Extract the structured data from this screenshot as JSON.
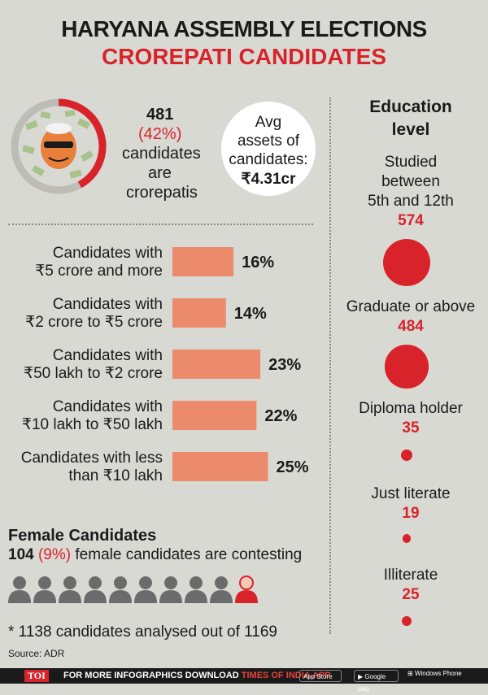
{
  "header": {
    "title_line1": "HARYANA ASSEMBLY ELECTIONS",
    "title_line2": "CROREPATI CANDIDATES"
  },
  "crorepati": {
    "count": "481",
    "percent": "(42%)",
    "line1": "candidates",
    "line2": "are",
    "line3": "crorepatis",
    "share": 0.42
  },
  "avg_assets": {
    "line1": "Avg",
    "line2": "assets of",
    "line3": "candidates:",
    "value": "₹4.31cr"
  },
  "chart_data": {
    "type": "bar",
    "orientation": "horizontal",
    "categories": [
      [
        "Candidates with",
        "₹5 crore and more"
      ],
      [
        "Candidates with",
        "₹2 crore to ₹5 crore"
      ],
      [
        "Candidates with",
        "₹50 lakh to ₹2 crore"
      ],
      [
        "Candidates with",
        "₹10 lakh to ₹50 lakh"
      ],
      [
        "Candidates with less",
        "than ₹10 lakh"
      ]
    ],
    "values": [
      16,
      14,
      23,
      22,
      25
    ],
    "value_labels": [
      "16%",
      "14%",
      "23%",
      "22%",
      "25%"
    ],
    "bar_color": "#ec8a6c"
  },
  "education": {
    "title_line1": "Education",
    "title_line2": "level",
    "items": [
      {
        "label_lines": [
          "Studied",
          "between",
          "5th and 12th"
        ],
        "value": "574",
        "count": 574
      },
      {
        "label_lines": [
          "Graduate or above"
        ],
        "value": "484",
        "count": 484
      },
      {
        "label_lines": [
          "Diploma holder"
        ],
        "value": "35",
        "count": 35
      },
      {
        "label_lines": [
          "Just literate"
        ],
        "value": "19",
        "count": 19
      },
      {
        "label_lines": [
          "Illiterate"
        ],
        "value": "25",
        "count": 25
      }
    ]
  },
  "female": {
    "title": "Female Candidates",
    "count": "104",
    "percent": "(9%)",
    "text": "female candidates are contesting",
    "icon_male_count": 9,
    "icon_female_count": 1
  },
  "footnote": "* 1138 candidates analysed out of 1169",
  "source": "Source: ADR",
  "footer": {
    "logo": "TOI",
    "text": "FOR MORE  INFOGRAPHICS DOWNLOAD",
    "brand": "TIMES OF INDIA  APP",
    "app_store": "App Store",
    "google_play": "Google play",
    "windows": "Windows Phone"
  },
  "colors": {
    "accent_red": "#d8232a",
    "bar": "#ec8a6c",
    "background": "#d9d9d4"
  }
}
